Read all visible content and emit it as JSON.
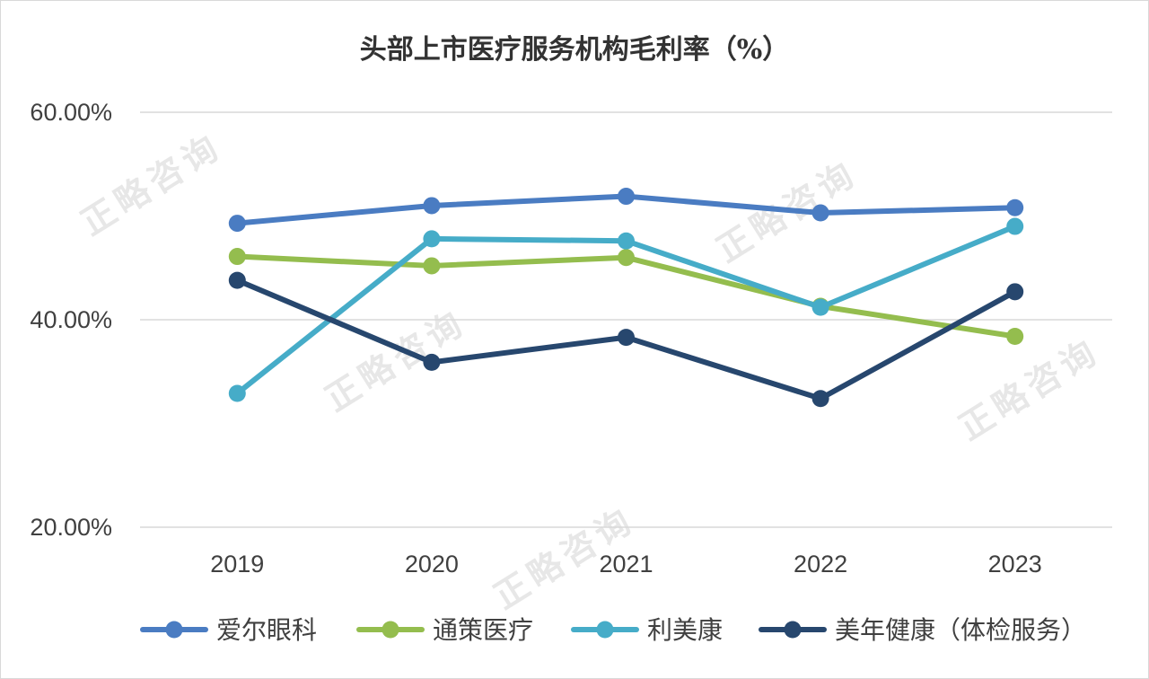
{
  "chart_data": {
    "type": "line",
    "title": "头部上市医疗服务机构毛利率（%）",
    "categories": [
      "2019",
      "2020",
      "2021",
      "2022",
      "2023"
    ],
    "y_ticks": [
      "20.00%",
      "40.00%",
      "60.00%"
    ],
    "y_tick_values": [
      20,
      40,
      60
    ],
    "ylim": [
      20,
      60
    ],
    "series": [
      {
        "name": "爱尔眼科",
        "color": "#4a7cc2",
        "values": [
          49.3,
          51.0,
          51.9,
          50.3,
          50.8
        ]
      },
      {
        "name": "通策医疗",
        "color": "#94bd4e",
        "values": [
          46.1,
          45.2,
          46.0,
          41.3,
          38.4
        ]
      },
      {
        "name": "利美康",
        "color": "#46acc8",
        "values": [
          32.9,
          47.8,
          47.6,
          41.2,
          49.0
        ]
      },
      {
        "name": "美年健康（体检服务）",
        "color": "#27476e",
        "values": [
          43.8,
          35.9,
          38.3,
          32.4,
          42.7
        ]
      }
    ],
    "legend_position": "bottom",
    "grid": true
  },
  "watermark": "正略咨询"
}
